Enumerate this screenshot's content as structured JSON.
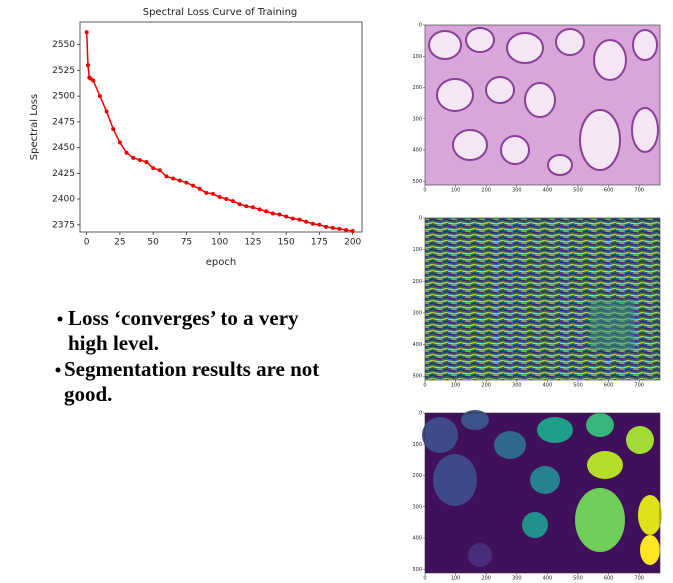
{
  "chart_data": {
    "type": "line",
    "title": "Spectral Loss Curve of Training",
    "xlabel": "epoch",
    "ylabel": "Spectral Loss",
    "color": "#ee0000",
    "x": [
      0,
      1,
      2,
      3,
      5,
      10,
      15,
      20,
      25,
      30,
      35,
      40,
      45,
      50,
      55,
      60,
      65,
      70,
      75,
      80,
      85,
      90,
      95,
      100,
      105,
      110,
      115,
      120,
      125,
      130,
      135,
      140,
      145,
      150,
      155,
      160,
      165,
      170,
      175,
      180,
      185,
      190,
      195,
      200
    ],
    "values": [
      2562,
      2530,
      2518,
      2517,
      2515,
      2500,
      2485,
      2468,
      2455,
      2445,
      2440,
      2438,
      2436,
      2430,
      2428,
      2422,
      2420,
      2418,
      2416,
      2413,
      2410,
      2406,
      2405,
      2402,
      2400,
      2398,
      2395,
      2393,
      2392,
      2390,
      2388,
      2386,
      2385,
      2383,
      2381,
      2380,
      2378,
      2376,
      2375,
      2373,
      2372,
      2371,
      2370,
      2369
    ],
    "xlim": [
      -5,
      207
    ],
    "ylim": [
      2368,
      2572
    ],
    "xticks": [
      0,
      25,
      50,
      75,
      100,
      125,
      150,
      175,
      200
    ],
    "yticks": [
      2375,
      2400,
      2425,
      2450,
      2475,
      2500,
      2525,
      2550
    ]
  },
  "bullets": [
    "Loss ‘converges’ to a very high level.",
    "Segmentation results are not good."
  ],
  "images": [
    {
      "xlim": [
        0,
        768
      ],
      "ylim": [
        0,
        512
      ],
      "xticks": [
        0,
        100,
        200,
        300,
        400,
        500,
        600,
        700
      ],
      "yticks": [
        0,
        100,
        200,
        300,
        400,
        500
      ]
    },
    {
      "xlim": [
        0,
        768
      ],
      "ylim": [
        0,
        512
      ],
      "xticks": [
        0,
        100,
        200,
        300,
        400,
        500,
        600,
        700
      ],
      "yticks": [
        0,
        100,
        200,
        300,
        400,
        500
      ]
    },
    {
      "xlim": [
        0,
        768
      ],
      "ylim": [
        0,
        512
      ],
      "xticks": [
        0,
        100,
        200,
        300,
        400,
        500,
        600,
        700
      ],
      "yticks": [
        0,
        100,
        200,
        300,
        400,
        500
      ]
    }
  ]
}
